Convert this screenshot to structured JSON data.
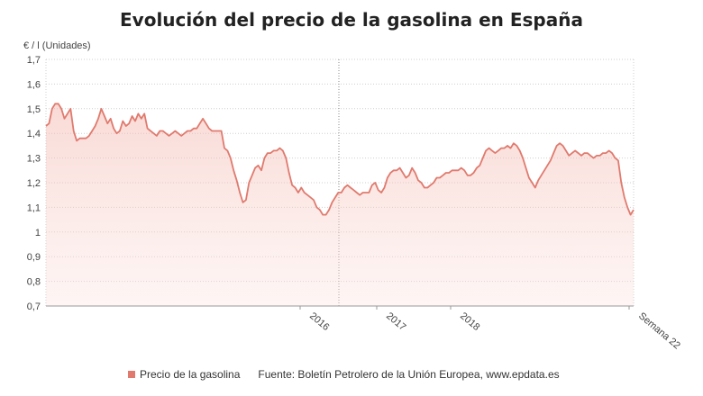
{
  "chart_data": {
    "type": "area",
    "title": "Evolución del precio de la gasolina en España",
    "ylabel": "€ / l (Unidades)",
    "ylim": [
      0.7,
      1.7
    ],
    "y_ticks": [
      "0,7",
      "0,8",
      "0,9",
      "1",
      "1,1",
      "1,2",
      "1,3",
      "1,4",
      "1,5",
      "1,6",
      "1,7"
    ],
    "x_ticks": [
      "2016",
      "2017",
      "2018",
      "Semana 22"
    ],
    "grid": true,
    "legend_position": "bottom-left",
    "series": [
      {
        "name": "Precio de la gasolina",
        "color": "#e07a6e",
        "values": [
          1.43,
          1.44,
          1.5,
          1.52,
          1.52,
          1.5,
          1.46,
          1.48,
          1.5,
          1.41,
          1.37,
          1.38,
          1.38,
          1.38,
          1.39,
          1.41,
          1.43,
          1.46,
          1.5,
          1.47,
          1.44,
          1.46,
          1.42,
          1.4,
          1.41,
          1.45,
          1.43,
          1.44,
          1.47,
          1.45,
          1.48,
          1.46,
          1.48,
          1.42,
          1.41,
          1.4,
          1.39,
          1.41,
          1.41,
          1.4,
          1.39,
          1.4,
          1.41,
          1.4,
          1.39,
          1.4,
          1.41,
          1.41,
          1.42,
          1.42,
          1.44,
          1.46,
          1.44,
          1.42,
          1.41,
          1.41,
          1.41,
          1.41,
          1.34,
          1.33,
          1.3,
          1.25,
          1.21,
          1.16,
          1.12,
          1.13,
          1.2,
          1.23,
          1.26,
          1.27,
          1.25,
          1.3,
          1.32,
          1.32,
          1.33,
          1.33,
          1.34,
          1.33,
          1.3,
          1.24,
          1.19,
          1.18,
          1.16,
          1.18,
          1.16,
          1.15,
          1.14,
          1.13,
          1.1,
          1.09,
          1.07,
          1.07,
          1.09,
          1.12,
          1.14,
          1.16,
          1.16,
          1.18,
          1.19,
          1.18,
          1.17,
          1.16,
          1.15,
          1.16,
          1.16,
          1.16,
          1.19,
          1.2,
          1.17,
          1.16,
          1.18,
          1.22,
          1.24,
          1.25,
          1.25,
          1.26,
          1.24,
          1.22,
          1.23,
          1.26,
          1.24,
          1.21,
          1.2,
          1.18,
          1.18,
          1.19,
          1.2,
          1.22,
          1.22,
          1.23,
          1.24,
          1.24,
          1.25,
          1.25,
          1.25,
          1.26,
          1.25,
          1.23,
          1.23,
          1.24,
          1.26,
          1.27,
          1.3,
          1.33,
          1.34,
          1.33,
          1.32,
          1.33,
          1.34,
          1.34,
          1.35,
          1.34,
          1.36,
          1.35,
          1.33,
          1.3,
          1.26,
          1.22,
          1.2,
          1.18,
          1.21,
          1.23,
          1.25,
          1.27,
          1.29,
          1.32,
          1.35,
          1.36,
          1.35,
          1.33,
          1.31,
          1.32,
          1.33,
          1.32,
          1.31,
          1.32,
          1.32,
          1.31,
          1.3,
          1.31,
          1.31,
          1.32,
          1.32,
          1.33,
          1.32,
          1.3,
          1.29,
          1.2,
          1.14,
          1.1,
          1.07,
          1.09
        ]
      }
    ]
  },
  "legend": {
    "series_label": "Precio de la gasolina",
    "source": "Fuente: Boletín Petrolero de la Unión Europea, www.epdata.es"
  }
}
